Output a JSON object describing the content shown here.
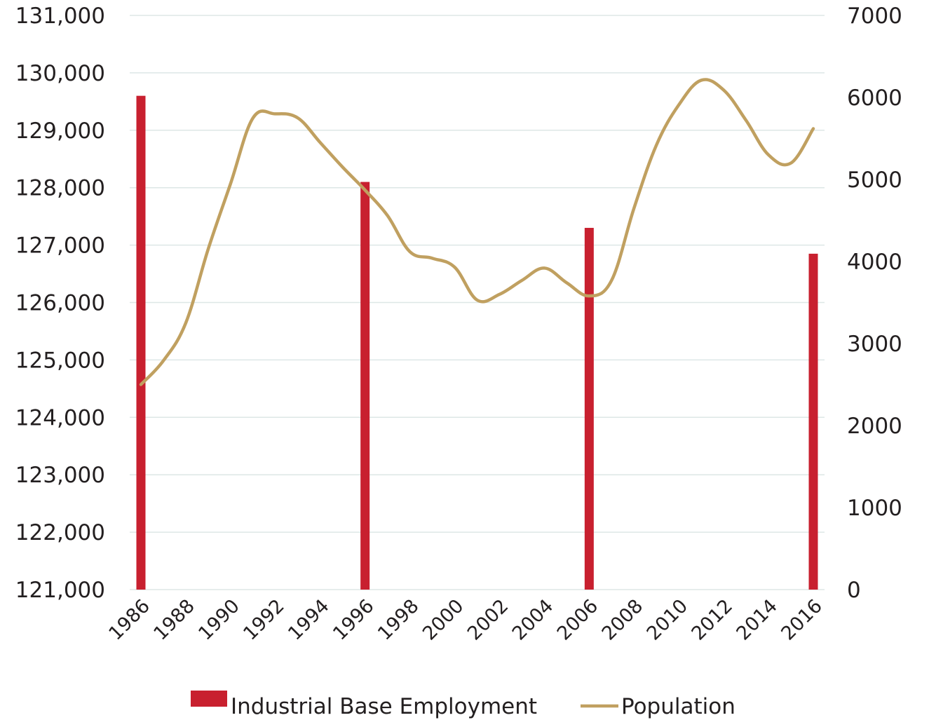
{
  "chart_data": {
    "type": "bar+line",
    "title": "",
    "xlabel": "",
    "ylabel_left": "",
    "ylabel_right": "",
    "x": [
      1986,
      1987,
      1988,
      1989,
      1990,
      1991,
      1992,
      1993,
      1994,
      1995,
      1996,
      1997,
      1998,
      1999,
      2000,
      2001,
      2002,
      2003,
      2004,
      2005,
      2006,
      2007,
      2008,
      2009,
      2010,
      2011,
      2012,
      2013,
      2014,
      2015,
      2016
    ],
    "x_tick_labels": [
      "1986",
      "1988",
      "1990",
      "1992",
      "1994",
      "1996",
      "1998",
      "2000",
      "2002",
      "2004",
      "2006",
      "2008",
      "2010",
      "2012",
      "2014",
      "2016"
    ],
    "y_left_ticks": [
      "121,000",
      "122,000",
      "123,000",
      "124,000",
      "125,000",
      "126,000",
      "127,000",
      "128,000",
      "129,000",
      "130,000",
      "131,000"
    ],
    "y_left_range": [
      121000,
      131000
    ],
    "y_right_ticks": [
      "0",
      "1000",
      "2000",
      "3000",
      "4000",
      "5000",
      "6000",
      "7000"
    ],
    "y_right_range": [
      0,
      7000
    ],
    "grid": true,
    "legend_position": "bottom",
    "series": [
      {
        "name": "Industrial Base Employment",
        "type": "bar",
        "axis": "left",
        "color": "#c8202f",
        "points": [
          {
            "x": 1986,
            "y": 129600
          },
          {
            "x": 1996,
            "y": 128100
          },
          {
            "x": 2006,
            "y": 127300
          },
          {
            "x": 2016,
            "y": 126850
          }
        ]
      },
      {
        "name": "Population",
        "type": "line",
        "axis": "right",
        "color": "#c0a060",
        "values": [
          2500,
          2790,
          3250,
          4150,
          4950,
          5750,
          5800,
          5750,
          5450,
          5150,
          4870,
          4560,
          4120,
          4040,
          3930,
          3530,
          3600,
          3770,
          3920,
          3740,
          3580,
          3770,
          4650,
          5420,
          5910,
          6210,
          6090,
          5720,
          5300,
          5200,
          5620
        ]
      }
    ]
  }
}
